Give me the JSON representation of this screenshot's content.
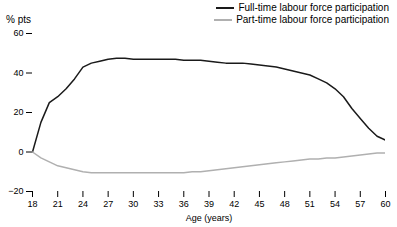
{
  "chart_data": {
    "type": "line",
    "xlabel": "Age (years)",
    "ylabel": "% pts",
    "xlim": [
      18,
      60
    ],
    "ylim": [
      -20,
      60
    ],
    "xticks": [
      18,
      21,
      24,
      27,
      30,
      33,
      36,
      39,
      42,
      45,
      48,
      51,
      54,
      57,
      60
    ],
    "yticks": [
      -20,
      0,
      20,
      40,
      60
    ],
    "grid": false,
    "legend": "upper right",
    "x": [
      18,
      19,
      20,
      21,
      22,
      23,
      24,
      25,
      26,
      27,
      28,
      29,
      30,
      31,
      32,
      33,
      34,
      35,
      36,
      37,
      38,
      39,
      40,
      41,
      42,
      43,
      44,
      45,
      46,
      47,
      48,
      49,
      50,
      51,
      52,
      53,
      54,
      55,
      56,
      57,
      58,
      59,
      60
    ],
    "series": [
      {
        "name": "Full-time labour force participation",
        "color": "#1a1a1a",
        "values": [
          0,
          15,
          25,
          28,
          32,
          37,
          43,
          45,
          46,
          47,
          47.5,
          47.5,
          47,
          47,
          47,
          47,
          47,
          47,
          46.5,
          46.5,
          46.5,
          46,
          45.5,
          45,
          45,
          45,
          44.5,
          44,
          43.5,
          43,
          42,
          41,
          40,
          39,
          37,
          35,
          32,
          28,
          22,
          17,
          12,
          8,
          6
        ]
      },
      {
        "name": "Part-time labour force participation",
        "color": "#b0b0b0",
        "values": [
          0,
          -3,
          -5,
          -7,
          -8,
          -9,
          -10,
          -10.5,
          -10.5,
          -10.5,
          -10.5,
          -10.5,
          -10.5,
          -10.5,
          -10.5,
          -10.5,
          -10.5,
          -10.5,
          -10.5,
          -10,
          -10,
          -9.5,
          -9,
          -8.5,
          -8,
          -7.5,
          -7,
          -6.5,
          -6,
          -5.5,
          -5,
          -4.5,
          -4,
          -3.5,
          -3.5,
          -3,
          -3,
          -2.5,
          -2,
          -1.5,
          -1,
          -0.5,
          -0.5
        ]
      }
    ]
  }
}
